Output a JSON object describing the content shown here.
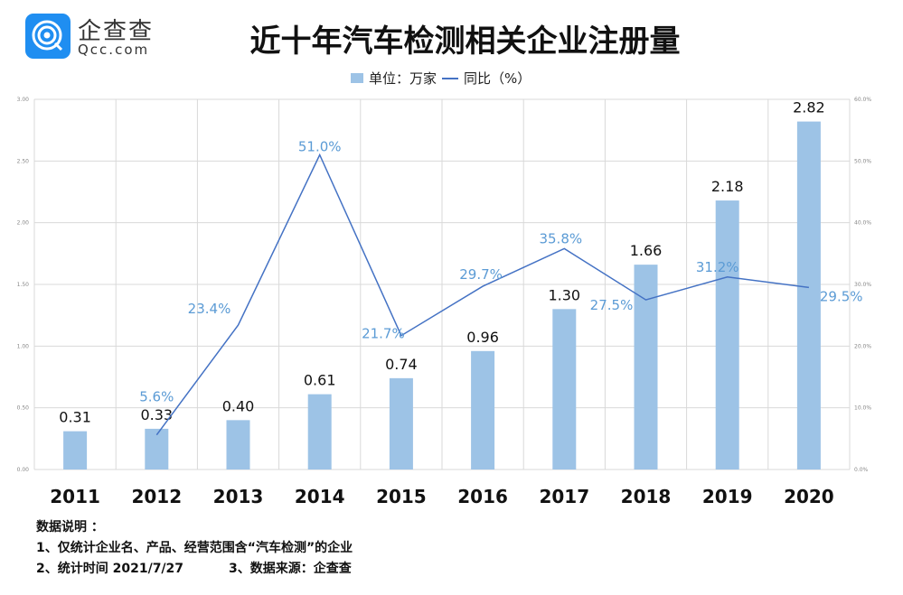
{
  "logo": {
    "cn": "企查查",
    "en": "Qcc.com"
  },
  "title": "近十年汽车检测相关企业注册量",
  "legend": {
    "bar": "单位：万家",
    "line": "同比（%）"
  },
  "notes": {
    "heading": "数据说明 ：",
    "line1": "1、仅统计企业名、产品、经营范围含“汽车检测”的企业",
    "line2a": "2、统计时间 2021/7/27",
    "line2b": "3、数据来源：企查查"
  },
  "chart_data": {
    "type": "bar+line",
    "title": "近十年汽车检测相关企业注册量",
    "categories": [
      "2011",
      "2012",
      "2013",
      "2014",
      "2015",
      "2016",
      "2017",
      "2018",
      "2019",
      "2020"
    ],
    "series": [
      {
        "name": "单位：万家",
        "type": "bar",
        "axis": "left",
        "values": [
          0.31,
          0.33,
          0.4,
          0.61,
          0.74,
          0.96,
          1.3,
          1.66,
          2.18,
          2.82
        ],
        "labels": [
          "0.31",
          "0.33",
          "0.40",
          "0.61",
          "0.74",
          "0.96",
          "1.30",
          "1.66",
          "2.18",
          "2.82"
        ],
        "color": "#9dc3e6"
      },
      {
        "name": "同比（%）",
        "type": "line",
        "axis": "right",
        "values": [
          null,
          5.6,
          23.4,
          51.0,
          21.7,
          29.7,
          35.8,
          27.5,
          31.2,
          29.5
        ],
        "labels": [
          "",
          "5.6%",
          "23.4%",
          "51.0%",
          "21.7%",
          "29.7%",
          "35.8%",
          "27.5%",
          "31.2%",
          "29.5%"
        ],
        "color": "#4472c4",
        "label_color": "#5b9bd5"
      }
    ],
    "left_axis": {
      "ylim": [
        0,
        3
      ],
      "ticks": [
        "0.00",
        "0.50",
        "1.00",
        "1.50",
        "2.00",
        "2.50",
        "3.00"
      ]
    },
    "right_axis": {
      "ylim": [
        0,
        60
      ],
      "ticks": [
        "0.0%",
        "10.0%",
        "20.0%",
        "30.0%",
        "40.0%",
        "50.0%",
        "60.0%"
      ]
    },
    "grid": true,
    "legend_position": "top"
  }
}
